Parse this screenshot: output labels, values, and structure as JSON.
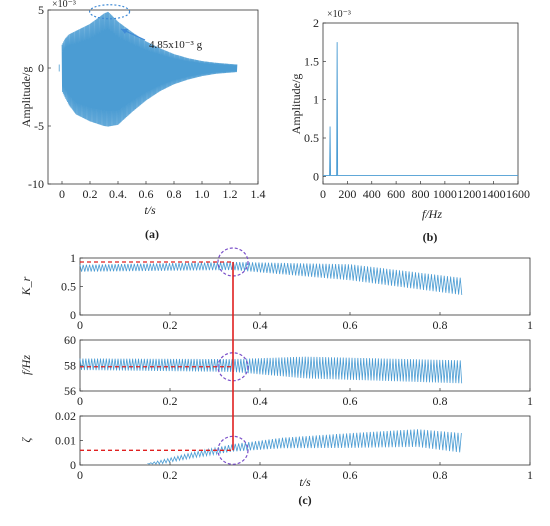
{
  "colors": {
    "signal": "#4b9cd3",
    "axis": "#333333",
    "marker": "#e02020",
    "circle": "#7a4fc9",
    "arrow": "#3f8ad6"
  },
  "chart_data": [
    {
      "type": "line",
      "panel_label": "(a)",
      "xlabel": "t/s",
      "ylabel": "Amplitude/g",
      "scale_note": "×10⁻³",
      "xlim": [
        -0.1,
        1.4
      ],
      "ylim": [
        -10,
        5
      ],
      "x_ticks": [
        "0",
        "0.2",
        "0.4.",
        "0.6",
        "0.8",
        "1.0",
        "1.2",
        "1.4"
      ],
      "y_ticks": [
        "5",
        "0",
        "-5",
        "-10"
      ],
      "envelope": {
        "t": [
          0.0,
          0.02,
          0.05,
          0.1,
          0.2,
          0.3,
          0.33,
          0.4,
          0.5,
          0.6,
          0.7,
          0.8,
          0.9,
          1.0,
          1.1,
          1.2,
          1.25
        ],
        "upper": [
          2.0,
          2.5,
          2.9,
          3.2,
          3.8,
          4.7,
          4.85,
          4.0,
          3.1,
          2.3,
          1.7,
          1.2,
          0.85,
          0.6,
          0.45,
          0.35,
          0.3
        ],
        "lower": [
          -2.0,
          -2.5,
          -3.2,
          -4.0,
          -4.6,
          -5.0,
          -5.05,
          -4.9,
          -3.8,
          -2.8,
          -2.0,
          -1.4,
          -1.0,
          -0.7,
          -0.5,
          -0.4,
          -0.35
        ]
      },
      "annotation": "4.85x10⁻³ g"
    },
    {
      "type": "line",
      "panel_label": "(b)",
      "xlabel": "f/Hz",
      "ylabel": "Amplitude/g",
      "scale_note": "×10⁻³",
      "xlim": [
        0,
        1600
      ],
      "ylim": [
        -0.1,
        2
      ],
      "x_ticks": [
        "0",
        "200",
        "400",
        "600",
        "800",
        "1000",
        "1200",
        "1400",
        "1600"
      ],
      "y_ticks": [
        "2",
        "1.5",
        "1",
        "0.5",
        "0"
      ],
      "peaks": [
        {
          "f": 58,
          "a": 0.65
        },
        {
          "f": 116,
          "a": 1.75
        }
      ]
    },
    {
      "type": "line",
      "panel_label": "(c)",
      "xlabel": "t/s",
      "marker_t": 0.34,
      "subplots": [
        {
          "ylabel": "K_r",
          "ylim": [
            0,
            1
          ],
          "y_ticks": [
            "1",
            "0.5",
            "0"
          ],
          "x_ticks": [
            "0",
            "0.2",
            "0.4",
            "0.6",
            "0.8",
            "1"
          ],
          "marker_value": 0.93,
          "center": {
            "t": [
              0,
              0.34,
              0.6,
              0.85
            ],
            "v": [
              0.82,
              0.86,
              0.75,
              0.5
            ]
          },
          "amplitude": {
            "t": [
              0,
              0.34,
              0.6,
              0.85
            ],
            "v": [
              0.06,
              0.07,
              0.14,
              0.15
            ]
          }
        },
        {
          "ylabel": "f/Hz",
          "ylim": [
            56,
            60
          ],
          "y_ticks": [
            "60",
            "58",
            "56"
          ],
          "x_ticks": [
            "0",
            "0.2",
            "0.4",
            "0.6",
            "0.8",
            "1"
          ],
          "marker_value": 57.9,
          "center": {
            "t": [
              0,
              0.34,
              0.85
            ],
            "v": [
              58.1,
              58.0,
              57.5
            ]
          },
          "amplitude": {
            "t": [
              0,
              0.34,
              0.5,
              0.85
            ],
            "v": [
              0.45,
              0.5,
              0.85,
              0.9
            ]
          }
        },
        {
          "ylabel": "ζ",
          "ylim": [
            0,
            0.02
          ],
          "y_ticks": [
            "0.02",
            "0.01",
            "0"
          ],
          "x_ticks": [
            "0",
            "0.2",
            "0.4",
            "0.6",
            "0.8",
            "1"
          ],
          "marker_value": 0.006,
          "start_t": 0.15,
          "center": {
            "t": [
              0.15,
              0.25,
              0.34,
              0.45,
              0.6,
              0.75,
              0.85
            ],
            "v": [
              0.0,
              0.004,
              0.007,
              0.009,
              0.01,
              0.011,
              0.009
            ]
          },
          "amplitude": {
            "t": [
              0.15,
              0.34,
              0.6,
              0.85
            ],
            "v": [
              0.0006,
              0.0015,
              0.003,
              0.004
            ]
          }
        }
      ]
    }
  ]
}
